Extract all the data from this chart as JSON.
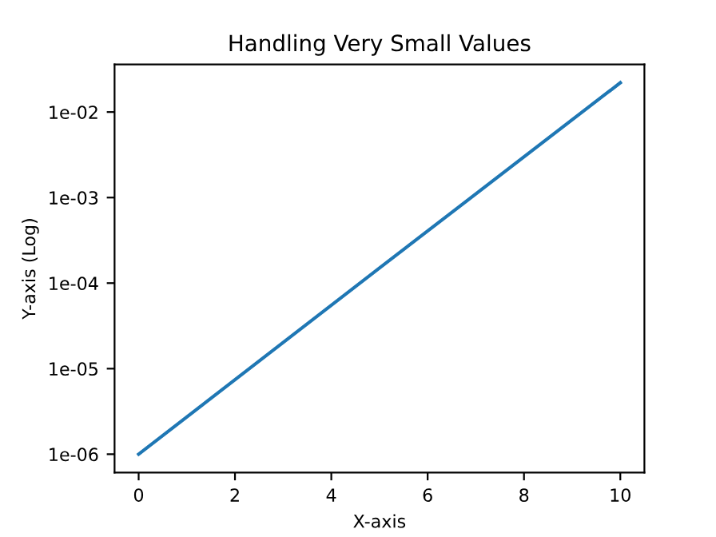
{
  "chart_data": {
    "type": "line",
    "title": "Handling Very Small Values",
    "xlabel": "X-axis",
    "ylabel": "Y-axis (Log)",
    "log": "y",
    "series": [
      {
        "color": "#1f77b4",
        "x": [
          0,
          5,
          10
        ],
        "values": [
          1e-06,
          0.00015,
          0.022
        ]
      }
    ],
    "xlim": [
      -0.5,
      10.5
    ],
    "xticks": [
      0,
      2,
      4,
      6,
      8,
      10
    ],
    "ylim": [
      6.1e-07,
      0.036
    ],
    "yticks": [
      {
        "value": 1e-06,
        "label": "1e-06"
      },
      {
        "value": 1e-05,
        "label": "1e-05"
      },
      {
        "value": 0.0001,
        "label": "1e-04"
      },
      {
        "value": 0.001,
        "label": "1e-03"
      },
      {
        "value": 0.01,
        "label": "1e-02"
      }
    ],
    "grid": false,
    "legend": false
  }
}
